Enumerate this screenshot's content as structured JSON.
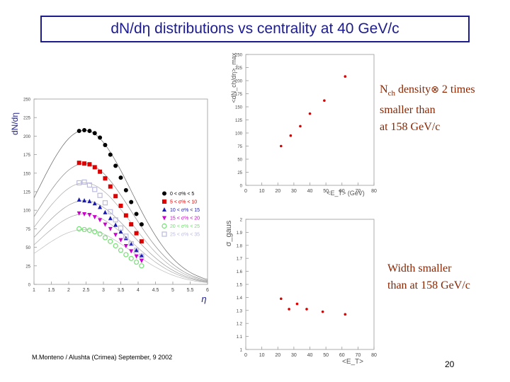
{
  "slide": {
    "title": "dN/dη   distributions vs centrality at 40 GeV/c",
    "note1_prefix": "N",
    "note1_sub": "ch",
    "note1_rest": " density",
    "note1_symbol": "⊗",
    "note1_tail": " 2 times",
    "note1_line2": "smaller than",
    "note1_line3": "at 158 GeV/c",
    "note2_line1": "Width smaller",
    "note2_line2": "than at 158 GeV/c",
    "footer": "M.Monteno / Alushta (Crimea) September, 9  2002",
    "page_number": "20"
  },
  "colors": {
    "title": "#1c1c8e",
    "note": "#8b2500",
    "points_red": "#dd0000"
  },
  "chart_data": [
    {
      "type": "scatter",
      "name": "dNdeta-vs-eta",
      "ylabel": "dN/dη",
      "xlabel": "η",
      "xlim": [
        1,
        6
      ],
      "ylim": [
        0,
        250
      ],
      "x_ticks": [
        "1",
        "1.5",
        "2",
        "2.5",
        "3",
        "3.5",
        "4",
        "4.5",
        "5",
        "5.5",
        "6"
      ],
      "y_ticks": [
        "0",
        "25",
        "50",
        "75",
        "100",
        "125",
        "150",
        "175",
        "200",
        "225",
        "250"
      ],
      "legend_position": "right",
      "series": [
        {
          "name": "0 < σ% < 5",
          "color": "#000000",
          "marker": "circle",
          "x": [
            2.3,
            2.45,
            2.6,
            2.75,
            2.9,
            3.05,
            3.2,
            3.35,
            3.5,
            3.65,
            3.8,
            3.95,
            4.1
          ],
          "y": [
            207,
            208,
            207,
            204,
            198,
            188,
            175,
            160,
            144,
            127,
            111,
            95,
            81
          ]
        },
        {
          "name": "5 < σ% < 10",
          "color": "#dd0000",
          "marker": "square",
          "x": [
            2.3,
            2.45,
            2.6,
            2.75,
            2.9,
            3.05,
            3.2,
            3.35,
            3.5,
            3.65,
            3.8,
            3.95,
            4.1
          ],
          "y": [
            164,
            163,
            162,
            158,
            152,
            143,
            132,
            119,
            106,
            93,
            81,
            69,
            58
          ]
        },
        {
          "name": "10 < σ% < 15",
          "color": "#1a1ab0",
          "marker": "triangle",
          "x": [
            2.3,
            2.45,
            2.6,
            2.75,
            2.9,
            3.05,
            3.2,
            3.35,
            3.5,
            3.65,
            3.8,
            3.95,
            4.1
          ],
          "y": [
            114,
            113,
            112,
            109,
            104,
            97,
            89,
            80,
            71,
            62,
            54,
            46,
            39
          ]
        },
        {
          "name": "15 < σ% < 20",
          "color": "#cc00cc",
          "marker": "triangle-down",
          "x": [
            2.3,
            2.45,
            2.6,
            2.75,
            2.9,
            3.05,
            3.2,
            3.35,
            3.5,
            3.65,
            3.8,
            3.95,
            4.1
          ],
          "y": [
            96,
            95,
            94,
            91,
            87,
            81,
            75,
            67,
            60,
            52,
            45,
            38,
            32
          ]
        },
        {
          "name": "20 < σ% < 25",
          "color": "#77dd77",
          "marker": "open-circle",
          "x": [
            2.3,
            2.45,
            2.6,
            2.75,
            2.9,
            3.05,
            3.2,
            3.35,
            3.5,
            3.65,
            3.8,
            3.95,
            4.1
          ],
          "y": [
            75,
            74,
            73,
            71,
            68,
            63,
            58,
            52,
            46,
            40,
            35,
            30,
            25
          ]
        },
        {
          "name": "25 < σ% < 35",
          "color": "#bbbbdd",
          "marker": "open-square",
          "x": [
            2.3,
            2.45,
            2.6,
            2.75,
            2.9,
            3.05,
            3.2,
            3.35,
            3.5,
            3.65,
            3.8,
            3.95,
            4.1
          ],
          "y": [
            137,
            138,
            134,
            128,
            120,
            110,
            98,
            87,
            76,
            65,
            55,
            46,
            38
          ]
        }
      ]
    },
    {
      "type": "scatter",
      "name": "mean-dNdeta-vs-Et",
      "ylabel": "<dN_ch/dη>_max",
      "xlabel": "<E_T> (GeV)",
      "xlim": [
        0,
        80
      ],
      "ylim": [
        0,
        250
      ],
      "x_ticks": [
        "0",
        "10",
        "20",
        "30",
        "40",
        "50",
        "60",
        "70",
        "80"
      ],
      "y_ticks": [
        "0",
        "25",
        "50",
        "75",
        "100",
        "125",
        "150",
        "175",
        "200",
        "225",
        "250"
      ],
      "color": "#dd0000",
      "x": [
        22,
        28,
        34,
        40,
        49,
        62
      ],
      "y": [
        75,
        95,
        113,
        137,
        162,
        208
      ]
    },
    {
      "type": "scatter",
      "name": "sigma-gaus-vs-Et",
      "ylabel": "σ_gaus",
      "xlabel": "<E_T>",
      "xlim": [
        0,
        80
      ],
      "ylim": [
        1,
        2
      ],
      "x_ticks": [
        "0",
        "10",
        "20",
        "30",
        "40",
        "50",
        "60",
        "70",
        "80"
      ],
      "y_ticks": [
        "1",
        "1.1",
        "1.2",
        "1.3",
        "1.4",
        "1.5",
        "1.6",
        "1.7",
        "1.8",
        "1.9",
        "2"
      ],
      "color": "#dd0000",
      "x": [
        22,
        27,
        32,
        38,
        48,
        62
      ],
      "y": [
        1.39,
        1.31,
        1.35,
        1.31,
        1.29,
        1.27
      ]
    }
  ]
}
